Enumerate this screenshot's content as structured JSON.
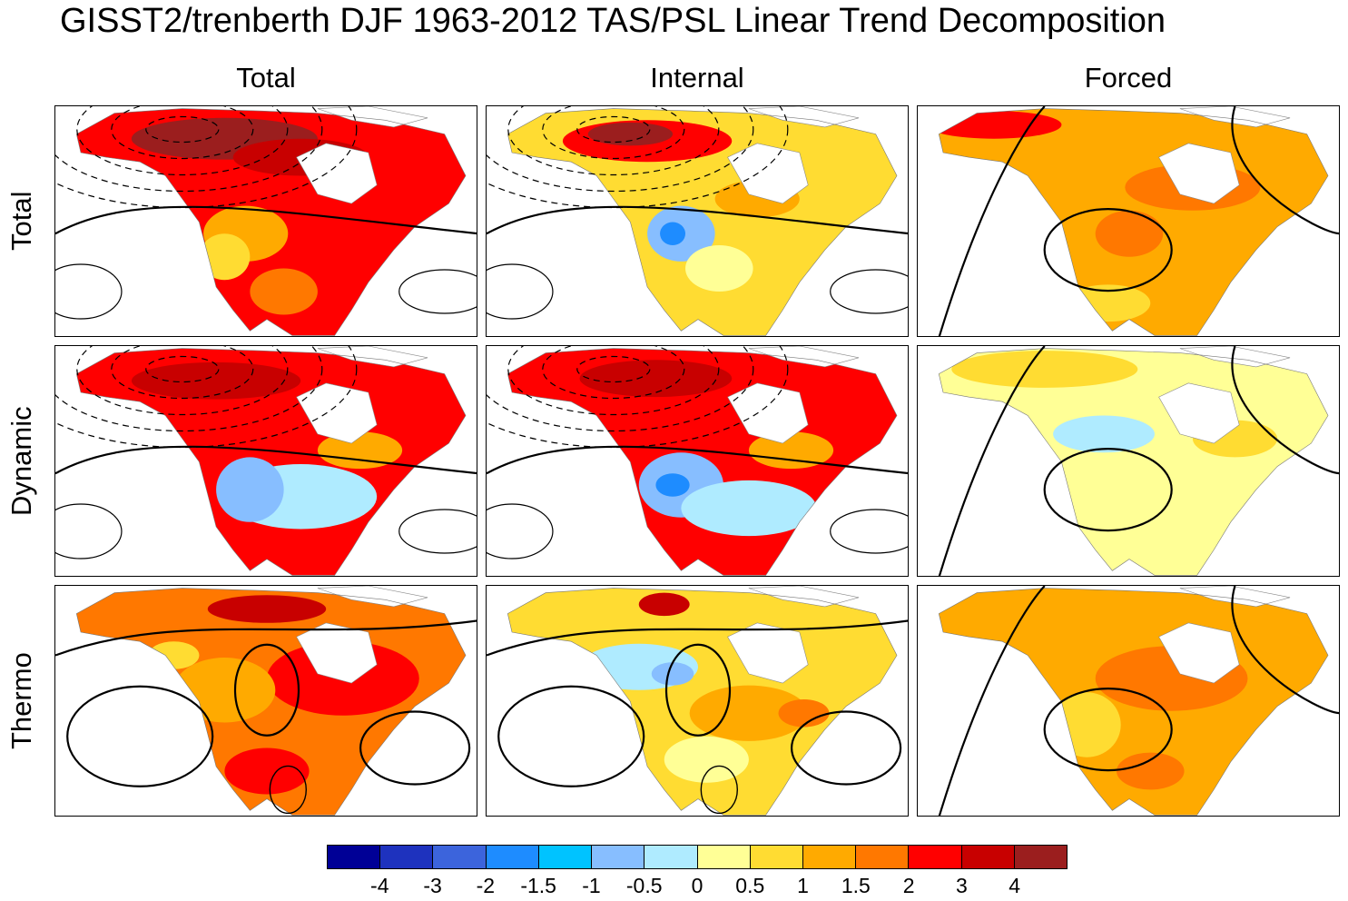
{
  "title": "GISST2/trenberth DJF 1963-2012 TAS/PSL Linear Trend Decomposition",
  "columns": [
    "Total",
    "Internal",
    "Forced"
  ],
  "rows": [
    "Total",
    "Dynamic",
    "Thermo"
  ],
  "colorbar": {
    "colors": [
      "#000096",
      "#1e32be",
      "#3c64dc",
      "#1e8cff",
      "#00c3ff",
      "#87beff",
      "#afebff",
      "#ffff96",
      "#ffdc32",
      "#ffaa00",
      "#ff7800",
      "#ff0000",
      "#c80000",
      "#9b1e1e"
    ],
    "tick_labels": [
      "-4",
      "-3",
      "-2",
      "-1.5",
      "-1",
      "-0.5",
      "0",
      "0.5",
      "1",
      "1.5",
      "2",
      "3",
      "4"
    ]
  },
  "panels": [
    {
      "row": "Total",
      "col": "Total",
      "bg": "#ff0000",
      "blobs": [
        [
          "#9b1e1e",
          0.4,
          0.14,
          0.22,
          0.09
        ],
        [
          "#c80000",
          0.58,
          0.22,
          0.16,
          0.08
        ],
        [
          "#ffaa00",
          0.45,
          0.55,
          0.1,
          0.12
        ],
        [
          "#ffdc32",
          0.4,
          0.65,
          0.06,
          0.1
        ],
        [
          "#ff7800",
          0.54,
          0.8,
          0.08,
          0.1
        ]
      ],
      "contours": "neg"
    },
    {
      "row": "Total",
      "col": "Internal",
      "bg": "#ffdc32",
      "blobs": [
        [
          "#ff0000",
          0.38,
          0.15,
          0.2,
          0.09
        ],
        [
          "#9b1e1e",
          0.34,
          0.12,
          0.1,
          0.05
        ],
        [
          "#87beff",
          0.46,
          0.55,
          0.08,
          0.12
        ],
        [
          "#1e8cff",
          0.44,
          0.55,
          0.03,
          0.05
        ],
        [
          "#ffaa00",
          0.64,
          0.4,
          0.1,
          0.08
        ],
        [
          "#ffff96",
          0.55,
          0.7,
          0.08,
          0.1
        ]
      ],
      "contours": "neg"
    },
    {
      "row": "Total",
      "col": "Forced",
      "bg": "#ffaa00",
      "blobs": [
        [
          "#ff0000",
          0.18,
          0.08,
          0.16,
          0.06
        ],
        [
          "#ff7800",
          0.65,
          0.35,
          0.16,
          0.1
        ],
        [
          "#ff7800",
          0.5,
          0.55,
          0.08,
          0.1
        ],
        [
          "#ffdc32",
          0.45,
          0.85,
          0.1,
          0.08
        ]
      ],
      "contours": "pos"
    },
    {
      "row": "Dynamic",
      "col": "Total",
      "bg": "#ff0000",
      "blobs": [
        [
          "#c80000",
          0.38,
          0.15,
          0.2,
          0.08
        ],
        [
          "#afebff",
          0.58,
          0.65,
          0.18,
          0.14
        ],
        [
          "#87beff",
          0.46,
          0.62,
          0.08,
          0.14
        ],
        [
          "#ffaa00",
          0.72,
          0.45,
          0.1,
          0.08
        ]
      ],
      "contours": "neg"
    },
    {
      "row": "Dynamic",
      "col": "Internal",
      "bg": "#ff0000",
      "blobs": [
        [
          "#c80000",
          0.4,
          0.14,
          0.18,
          0.08
        ],
        [
          "#87beff",
          0.46,
          0.6,
          0.1,
          0.14
        ],
        [
          "#1e8cff",
          0.44,
          0.6,
          0.04,
          0.05
        ],
        [
          "#afebff",
          0.62,
          0.7,
          0.16,
          0.12
        ],
        [
          "#ffaa00",
          0.72,
          0.45,
          0.1,
          0.08
        ]
      ],
      "contours": "neg"
    },
    {
      "row": "Dynamic",
      "col": "Forced",
      "bg": "#ffff96",
      "blobs": [
        [
          "#ffdc32",
          0.3,
          0.1,
          0.22,
          0.08
        ],
        [
          "#afebff",
          0.44,
          0.38,
          0.12,
          0.08
        ],
        [
          "#ffdc32",
          0.75,
          0.4,
          0.1,
          0.08
        ]
      ],
      "contours": "pos"
    },
    {
      "row": "Thermo",
      "col": "Total",
      "bg": "#ff7800",
      "blobs": [
        [
          "#ff0000",
          0.68,
          0.4,
          0.18,
          0.16
        ],
        [
          "#c80000",
          0.5,
          0.1,
          0.14,
          0.06
        ],
        [
          "#ffaa00",
          0.4,
          0.45,
          0.12,
          0.14
        ],
        [
          "#ffdc32",
          0.28,
          0.3,
          0.06,
          0.06
        ],
        [
          "#ff0000",
          0.5,
          0.8,
          0.1,
          0.1
        ]
      ],
      "contours": "mix"
    },
    {
      "row": "Thermo",
      "col": "Internal",
      "bg": "#ffdc32",
      "blobs": [
        [
          "#afebff",
          0.36,
          0.35,
          0.14,
          0.1
        ],
        [
          "#87beff",
          0.44,
          0.38,
          0.05,
          0.05
        ],
        [
          "#ffaa00",
          0.62,
          0.55,
          0.14,
          0.12
        ],
        [
          "#c80000",
          0.42,
          0.08,
          0.06,
          0.05
        ],
        [
          "#ffff96",
          0.52,
          0.75,
          0.1,
          0.1
        ],
        [
          "#ff7800",
          0.75,
          0.55,
          0.06,
          0.06
        ]
      ],
      "contours": "mix"
    },
    {
      "row": "Thermo",
      "col": "Forced",
      "bg": "#ffaa00",
      "blobs": [
        [
          "#ff7800",
          0.6,
          0.4,
          0.18,
          0.14
        ],
        [
          "#ffdc32",
          0.4,
          0.6,
          0.08,
          0.14
        ],
        [
          "#ff7800",
          0.55,
          0.8,
          0.08,
          0.08
        ]
      ],
      "contours": "pos"
    }
  ]
}
